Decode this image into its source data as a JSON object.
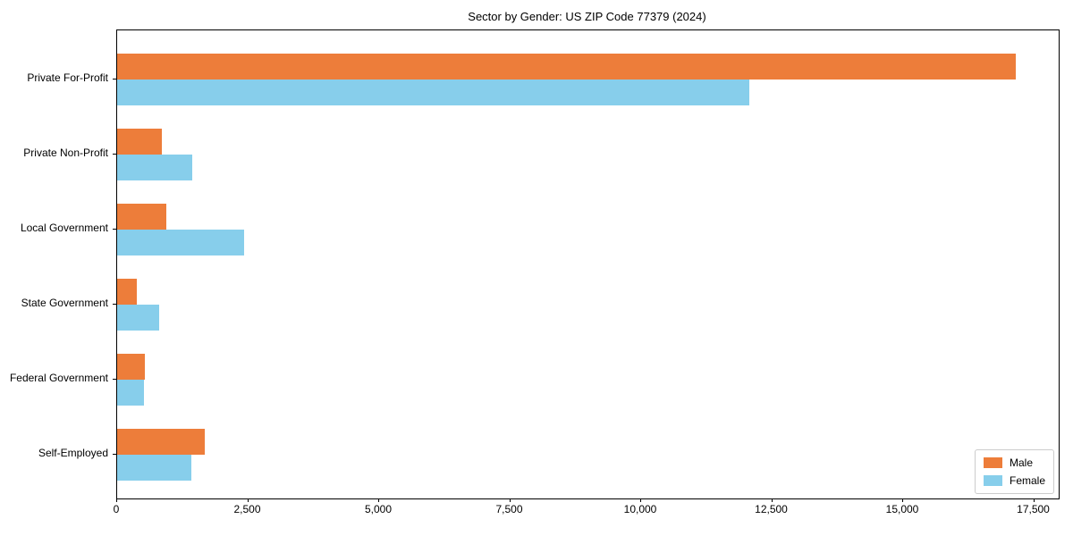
{
  "chart_data": {
    "type": "bar",
    "orientation": "horizontal",
    "title": "Sector by Gender: US ZIP Code 77379 (2024)",
    "categories": [
      "Private For-Profit",
      "Private Non-Profit",
      "Local Government",
      "State Government",
      "Federal Government",
      "Self-Employed"
    ],
    "series": [
      {
        "name": "Male",
        "color": "#ed7d3a",
        "values": [
          17145,
          850,
          940,
          375,
          530,
          1670
        ]
      },
      {
        "name": "Female",
        "color": "#87ceeb",
        "values": [
          12060,
          1430,
          2420,
          800,
          510,
          1420
        ]
      }
    ],
    "xlabel": "",
    "ylabel": "",
    "xlim": [
      0,
      17970
    ],
    "xticks": [
      {
        "value": 0,
        "label": "0"
      },
      {
        "value": 2500,
        "label": "2,500"
      },
      {
        "value": 5000,
        "label": "5,000"
      },
      {
        "value": 7500,
        "label": "7,500"
      },
      {
        "value": 10000,
        "label": "10,000"
      },
      {
        "value": 12500,
        "label": "12,500"
      },
      {
        "value": 15000,
        "label": "15,000"
      },
      {
        "value": 17500,
        "label": "17,500"
      }
    ],
    "grid": false,
    "legend": {
      "position": "lower-right",
      "entries": [
        "Male",
        "Female"
      ]
    }
  },
  "colors": {
    "male": "#ed7d3a",
    "female": "#87ceeb",
    "background": "#ffffff",
    "spine": "#000000",
    "legend_border": "#cccccc"
  }
}
